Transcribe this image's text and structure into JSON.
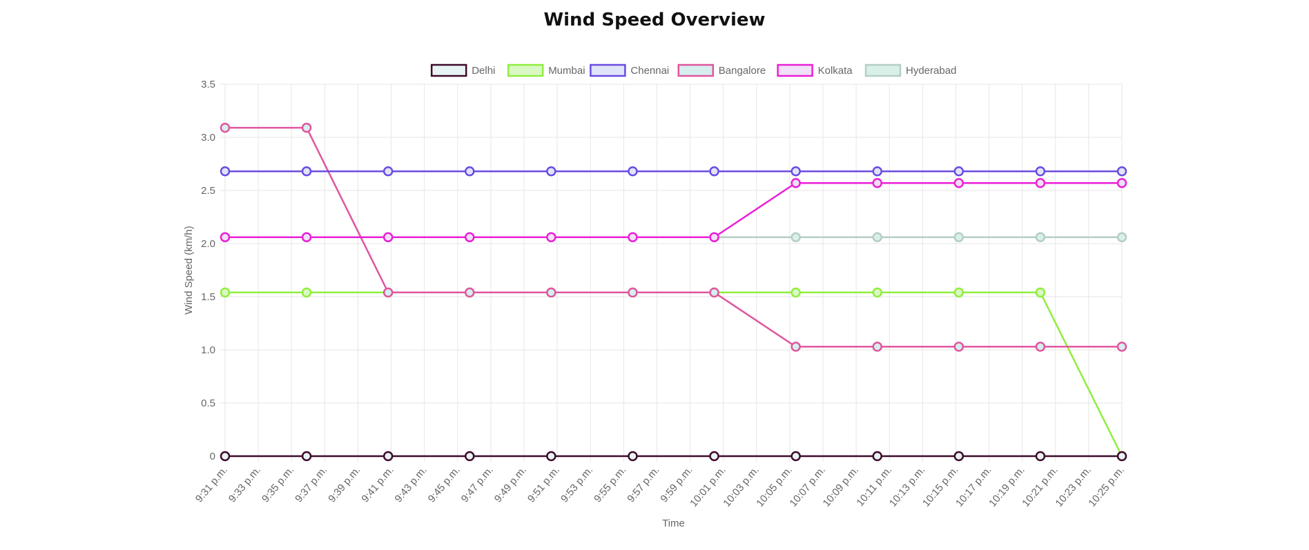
{
  "title": "Wind Speed Overview",
  "chart_data": {
    "type": "line",
    "title": "Wind Speed Overview",
    "xlabel": "Time",
    "ylabel": "Wind Speed (km/h)",
    "ylim": [
      0,
      3.5
    ],
    "yticks": [
      "0",
      "0.5",
      "1.0",
      "1.5",
      "2.0",
      "2.5",
      "3.0",
      "3.5"
    ],
    "ytick_values": [
      0,
      0.5,
      1.0,
      1.5,
      2.0,
      2.5,
      3.0,
      3.5
    ],
    "grid": true,
    "legend_position": "top",
    "x_tick_labels": [
      "9:31 p.m.",
      "9:33 p.m.",
      "9:35 p.m.",
      "9:37 p.m.",
      "9:39 p.m.",
      "9:41 p.m.",
      "9:43 p.m.",
      "9:45 p.m.",
      "9:47 p.m.",
      "9:49 p.m.",
      "9:51 p.m.",
      "9:53 p.m.",
      "9:55 p.m.",
      "9:57 p.m.",
      "9:59 p.m.",
      "10:01 p.m.",
      "10:03 p.m.",
      "10:05 p.m.",
      "10:07 p.m.",
      "10:09 p.m.",
      "10:11 p.m.",
      "10:13 p.m.",
      "10:15 p.m.",
      "10:17 p.m.",
      "10:19 p.m.",
      "10:21 p.m.",
      "10:23 p.m.",
      "10:25 p.m."
    ],
    "x_minutes": [
      0,
      5,
      10,
      15,
      20,
      25,
      30,
      35,
      40,
      45,
      50,
      55
    ],
    "x_labels": [
      "9:31 p.m.",
      "9:36 p.m.",
      "9:41 p.m.",
      "9:46 p.m.",
      "9:51 p.m.",
      "9:56 p.m.",
      "10:01 p.m.",
      "10:06 p.m.",
      "10:11 p.m.",
      "10:16 p.m.",
      "10:21 p.m.",
      "10:26 p.m."
    ],
    "series": [
      {
        "name": "Delhi",
        "color": "#3d0a2a",
        "fill": "#e8f4f4",
        "values": [
          0,
          0,
          0,
          0,
          0,
          0,
          0,
          0,
          0,
          0,
          0,
          0
        ]
      },
      {
        "name": "Mumbai",
        "color": "#90ee3f",
        "fill": "#d9f8c4",
        "values": [
          1.54,
          1.54,
          1.54,
          1.54,
          1.54,
          1.54,
          1.54,
          1.54,
          1.54,
          1.54,
          1.54,
          0
        ]
      },
      {
        "name": "Chennai",
        "color": "#6a4be0",
        "fill": "#e0e4f8",
        "values": [
          2.68,
          2.68,
          2.68,
          2.68,
          2.68,
          2.68,
          2.68,
          2.68,
          2.68,
          2.68,
          2.68,
          2.68
        ]
      },
      {
        "name": "Bangalore",
        "color": "#e0559e",
        "fill": "#d6eeee",
        "values": [
          3.09,
          3.09,
          1.54,
          1.54,
          1.54,
          1.54,
          1.54,
          1.03,
          1.03,
          1.03,
          1.03,
          1.03
        ]
      },
      {
        "name": "Kolkata",
        "color": "#ea1fd6",
        "fill": "#f0e0f8",
        "values": [
          2.06,
          2.06,
          2.06,
          2.06,
          2.06,
          2.06,
          2.06,
          2.57,
          2.57,
          2.57,
          2.57,
          2.57
        ]
      },
      {
        "name": "Hyderabad",
        "color": "#b5cec5",
        "fill": "#d8f0e8",
        "values": [
          2.06,
          2.06,
          2.06,
          2.06,
          2.06,
          2.06,
          2.06,
          2.06,
          2.06,
          2.06,
          2.06,
          2.06
        ]
      }
    ]
  }
}
